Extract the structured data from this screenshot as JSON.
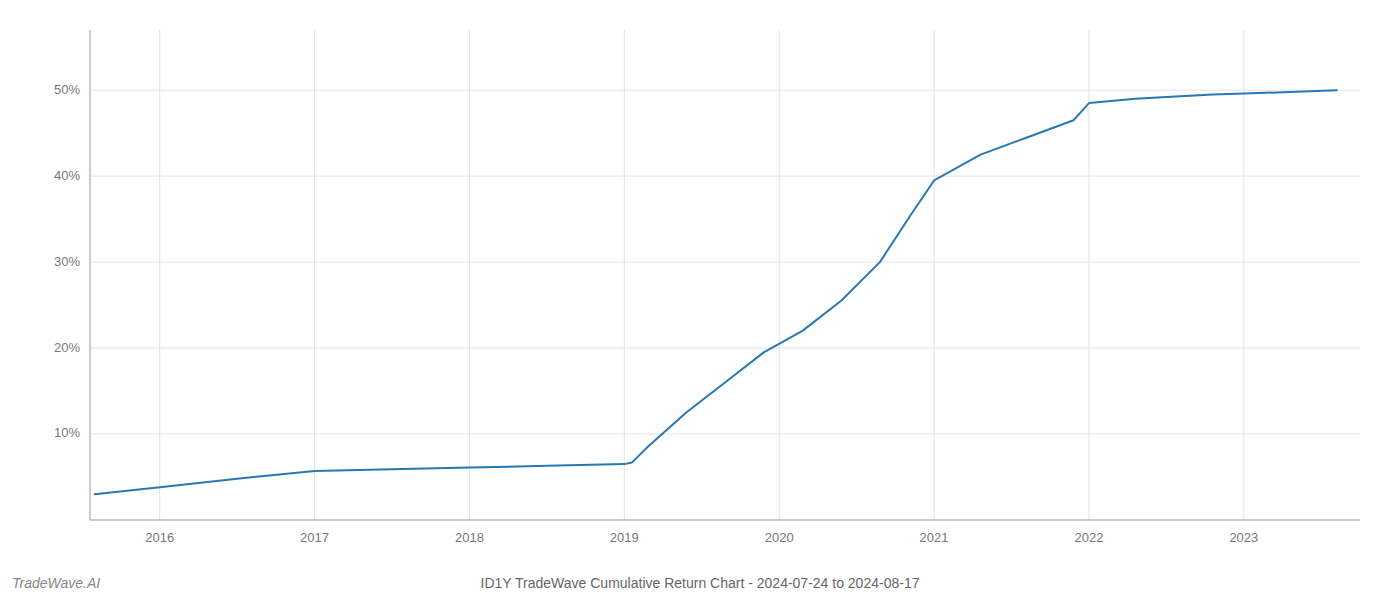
{
  "chart_data": {
    "type": "line",
    "title": "ID1Y TradeWave Cumulative Return Chart - 2024-07-24 to 2024-08-17",
    "annotations": [
      "TradeWave.AI"
    ],
    "x": [
      2015.58,
      2016.0,
      2016.5,
      2017.0,
      2017.5,
      2018.0,
      2018.5,
      2019.0,
      2019.05,
      2019.15,
      2019.4,
      2019.65,
      2019.9,
      2020.15,
      2020.4,
      2020.65,
      2020.85,
      2021.0,
      2021.3,
      2021.6,
      2021.9,
      2022.0,
      2022.3,
      2022.5,
      2022.8,
      2023.0,
      2023.3,
      2023.6
    ],
    "values": [
      3.0,
      3.8,
      4.8,
      5.7,
      5.9,
      6.1,
      6.3,
      6.5,
      6.7,
      8.5,
      12.5,
      16.0,
      19.5,
      22.0,
      25.5,
      30.0,
      35.5,
      39.5,
      42.5,
      44.5,
      46.5,
      48.5,
      49.0,
      49.2,
      49.5,
      49.6,
      49.8,
      50.0
    ],
    "color": "#2878b5",
    "xlim": [
      2015.55,
      2023.75
    ],
    "ylim": [
      0,
      57
    ],
    "xticks": [
      2016,
      2017,
      2018,
      2019,
      2020,
      2021,
      2022,
      2023
    ],
    "yticks": [
      {
        "value": 10,
        "label": "10%"
      },
      {
        "value": 20,
        "label": "20%"
      },
      {
        "value": 30,
        "label": "30%"
      },
      {
        "value": 40,
        "label": "40%"
      },
      {
        "value": 50,
        "label": "50%"
      }
    ],
    "grid": true
  }
}
